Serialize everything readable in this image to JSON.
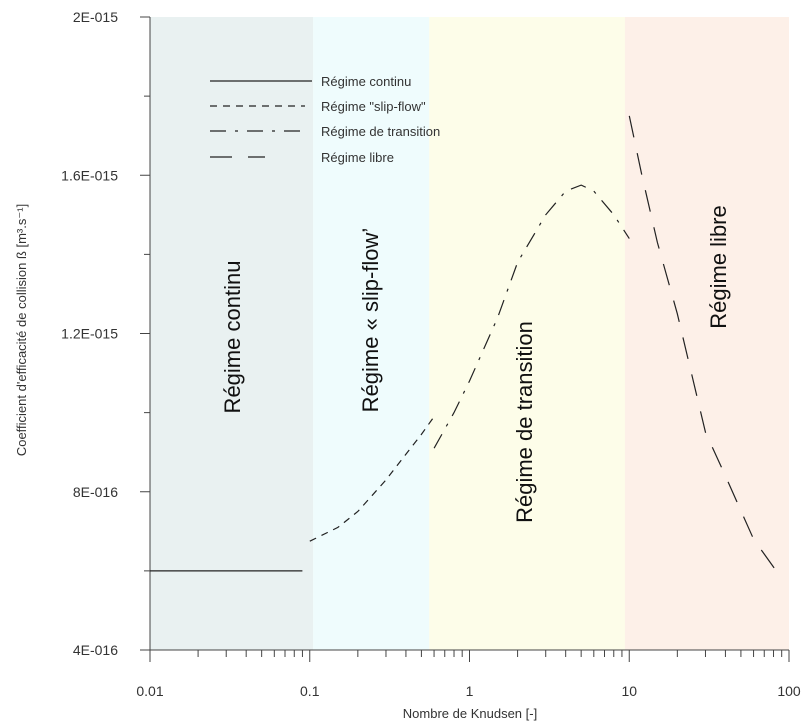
{
  "chart_data": {
    "type": "line",
    "title": "",
    "xlabel": "Nombre de Knudsen [-]",
    "ylabel": "Coefficient d'efficacité de collision ß [m³.s⁻¹]",
    "xscale": "log",
    "xlim": [
      0.01,
      100
    ],
    "ylim": [
      4e-16,
      2e-15
    ],
    "x_tick_values": [
      0.01,
      0.1,
      1,
      10,
      100
    ],
    "x_tick_labels": [
      "0.01",
      "0.1",
      "1",
      "10",
      "100"
    ],
    "y_tick_values": [
      4e-16,
      8e-16,
      1.2e-15,
      1.6e-15,
      2e-15
    ],
    "y_tick_labels": [
      "4E-016",
      "8E-016",
      "1.2E-015",
      "1.6E-015",
      "2E-015"
    ],
    "grid": false,
    "legend_position": "top-left",
    "regions": [
      {
        "label": "Régime continu",
        "x_start": 0.01,
        "x_end": 0.105,
        "color": "#e9f1f1"
      },
      {
        "label": "Régime « slip-flow’",
        "x_start": 0.105,
        "x_end": 0.56,
        "color": "#effcfd"
      },
      {
        "label": "Régime de transition",
        "x_start": 0.56,
        "x_end": 9.4,
        "color": "#fdfde9"
      },
      {
        "label": "Régime libre",
        "x_start": 9.4,
        "x_end": 100,
        "color": "#fdf0e8"
      }
    ],
    "series": [
      {
        "name": "Régime continu",
        "dash": "solid",
        "x": [
          0.01,
          0.09
        ],
        "y": [
          6e-16,
          6e-16
        ]
      },
      {
        "name": "Régime \"slip-flow\"",
        "dash": "dashed",
        "x": [
          0.1,
          0.15,
          0.2,
          0.3,
          0.4,
          0.5,
          0.6
        ],
        "y": [
          6.75e-16,
          7.1e-16,
          7.5e-16,
          8.3e-16,
          8.95e-16,
          9.45e-16,
          9.9e-16
        ]
      },
      {
        "name": "Régime de transition",
        "dash": "dashdot",
        "x": [
          0.6,
          0.8,
          1.0,
          1.5,
          2.0,
          3.0,
          4.0,
          5.0,
          6.0,
          8.0,
          10.0
        ],
        "y": [
          9.1e-16,
          1e-15,
          1.08e-15,
          1.24e-15,
          1.38e-15,
          1.5e-15,
          1.56e-15,
          1.575e-15,
          1.56e-15,
          1.5e-15,
          1.44e-15
        ]
      },
      {
        "name": "Régime libre",
        "dash": "longdash",
        "x": [
          10.0,
          12.0,
          15.0,
          20.0,
          30.0,
          40.0,
          60.0,
          85.0
        ],
        "y": [
          1.75e-15,
          1.6e-15,
          1.43e-15,
          1.25e-15,
          9.5e-16,
          8.4e-16,
          6.8e-16,
          5.95e-16
        ]
      }
    ]
  }
}
